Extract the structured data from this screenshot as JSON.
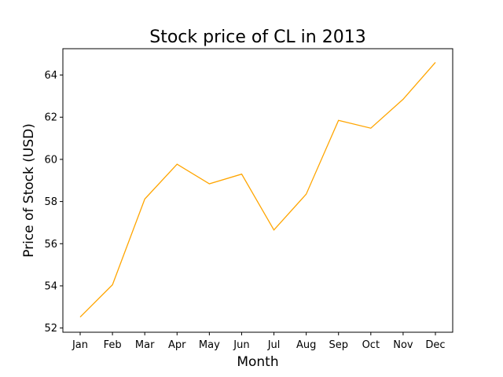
{
  "chart_data": {
    "type": "line",
    "title": "Stock price of CL in 2013",
    "xlabel": "Month",
    "ylabel": "Price of Stock (USD)",
    "categories": [
      "Jan",
      "Feb",
      "Mar",
      "Apr",
      "May",
      "Jun",
      "Jul",
      "Aug",
      "Sep",
      "Oct",
      "Nov",
      "Dec"
    ],
    "series": [
      {
        "values": [
          52.52,
          54.05,
          58.12,
          59.77,
          58.84,
          59.3,
          56.65,
          58.35,
          61.85,
          61.48,
          62.85,
          64.6
        ],
        "color": "#ffa500"
      }
    ],
    "ylim": [
      51.8,
      65.25
    ],
    "yticks": [
      52,
      54,
      56,
      58,
      60,
      62,
      64
    ],
    "grid": false,
    "legend": "none"
  }
}
